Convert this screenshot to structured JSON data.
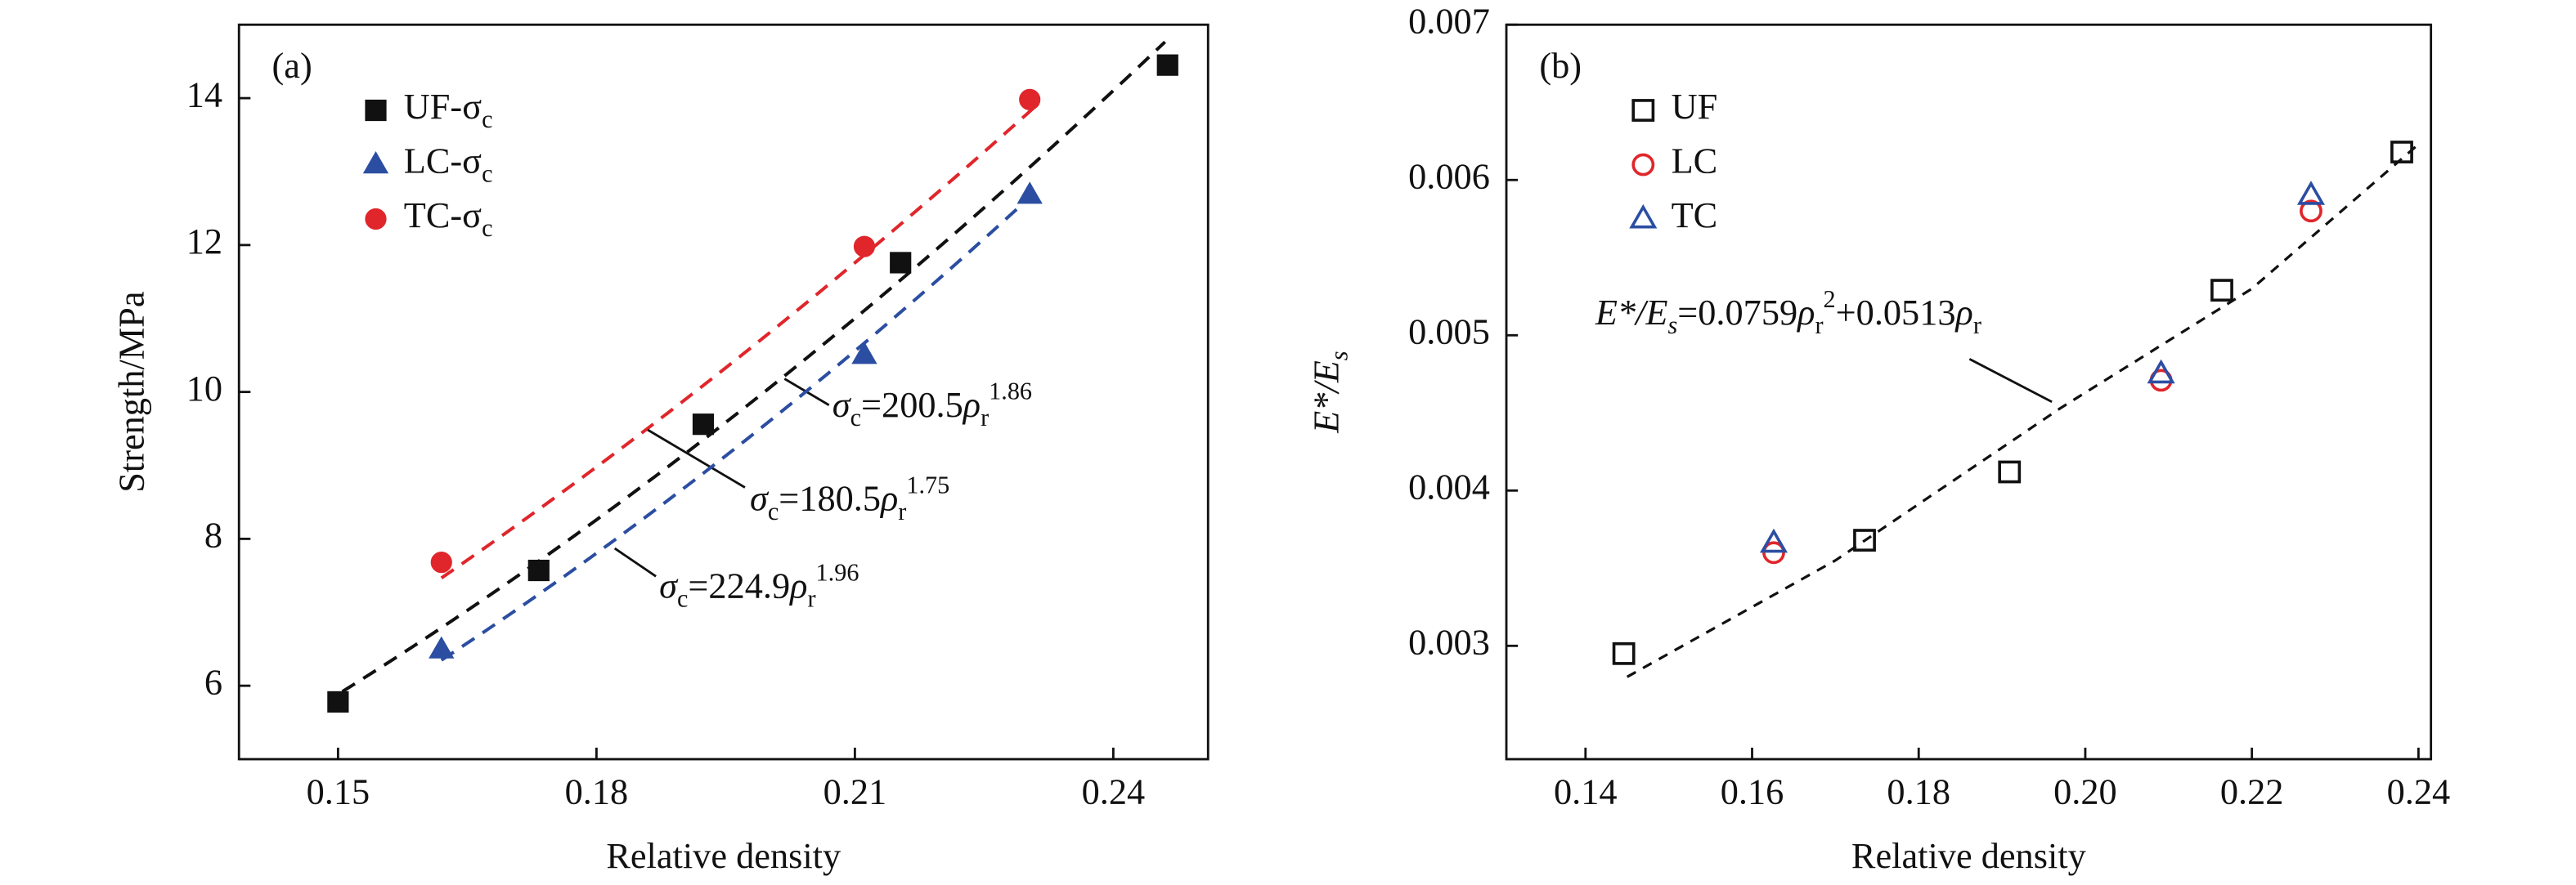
{
  "chart_data": [
    {
      "type": "scatter",
      "panel": "(a)",
      "x_label": "Relative density",
      "y_label": "Strength/MPa",
      "xlim": [
        0.1385,
        0.251
      ],
      "ylim": [
        5,
        15
      ],
      "xticks": [
        0.15,
        0.18,
        0.21,
        0.24
      ],
      "yticks": [
        6,
        8,
        10,
        12,
        14
      ],
      "series": [
        {
          "name": "UF-σ",
          "name_sub": "c",
          "color": "#111111",
          "marker": "square",
          "filled": true,
          "x": [
            0.15,
            0.1733,
            0.1924,
            0.2153,
            0.2463
          ],
          "values": [
            5.78,
            7.57,
            9.56,
            11.76,
            14.45
          ]
        },
        {
          "name": "LC-σ",
          "name_sub": "c",
          "color": "#2b4ea2",
          "marker": "triangle",
          "filled": true,
          "x": [
            0.162,
            0.2111,
            0.2303
          ],
          "values": [
            6.49,
            10.5,
            12.68
          ]
        },
        {
          "name": "TC-σ",
          "name_sub": "c",
          "color": "#e0262b",
          "marker": "circle",
          "filled": true,
          "x": [
            0.162,
            0.2111,
            0.2303
          ],
          "values": [
            7.68,
            11.98,
            13.98
          ]
        }
      ],
      "fits": [
        {
          "lhs": "σ",
          "lhs_sub": "c",
          "eq": "=",
          "coef": 200.5,
          "var": "ρ",
          "var_sub": "r",
          "exp": 1.86,
          "color": "#111111",
          "x": [
            0.1505,
            0.246
          ]
        },
        {
          "lhs": "σ",
          "lhs_sub": "c",
          "eq": "=",
          "coef": 180.5,
          "var": "ρ",
          "var_sub": "r",
          "exp": 1.75,
          "color": "#e0262b",
          "x": [
            0.162,
            0.231
          ]
        },
        {
          "lhs": "σ",
          "lhs_sub": "c",
          "eq": "=",
          "coef": 224.9,
          "var": "ρ",
          "var_sub": "r",
          "exp": 1.96,
          "color": "#2b4ea2",
          "x": [
            0.162,
            0.231
          ]
        }
      ]
    },
    {
      "type": "scatter",
      "panel": "(b)",
      "x_label": "Relative density",
      "y_label": "E*/E",
      "y_label_sub": "s",
      "xlim": [
        0.1305,
        0.2415
      ],
      "ylim": [
        0.00227,
        0.007
      ],
      "xticks": [
        0.14,
        0.16,
        0.18,
        {
          "value": 0.2,
          "label": "0.20"
        },
        0.22,
        0.24
      ],
      "yticks": [
        0.003,
        0.004,
        0.005,
        0.006,
        0.007
      ],
      "series": [
        {
          "name": "UF",
          "color": "#111111",
          "marker": "square",
          "filled": false,
          "x": [
            0.1446,
            0.1735,
            0.1909,
            0.2164,
            0.238
          ],
          "values": [
            0.00295,
            0.00368,
            0.00412,
            0.00529,
            0.00618
          ]
        },
        {
          "name": "LC",
          "color": "#e0262b",
          "marker": "circle",
          "filled": false,
          "x": [
            0.1626,
            0.2091,
            0.2271
          ],
          "values": [
            0.0036,
            0.00471,
            0.0058
          ]
        },
        {
          "name": "TC",
          "color": "#2b4ea2",
          "marker": "triangle",
          "filled": false,
          "x": [
            0.1626,
            0.2091,
            0.2271
          ],
          "values": [
            0.00366,
            0.00475,
            0.0059
          ]
        }
      ],
      "fit_line": {
        "color": "#111111",
        "x": [
          0.145,
          0.17,
          0.197,
          0.22,
          0.24
        ],
        "values": [
          0.0028,
          0.00355,
          0.00453,
          0.0053,
          0.00623
        ]
      },
      "fit_label": {
        "lhs": "E*/E",
        "lhs_sub": "s",
        "eq": "=",
        "a": 0.0759,
        "var": "ρ",
        "var_sub": "r",
        "power": 2,
        "plus": "+",
        "b": 0.0513
      }
    }
  ]
}
